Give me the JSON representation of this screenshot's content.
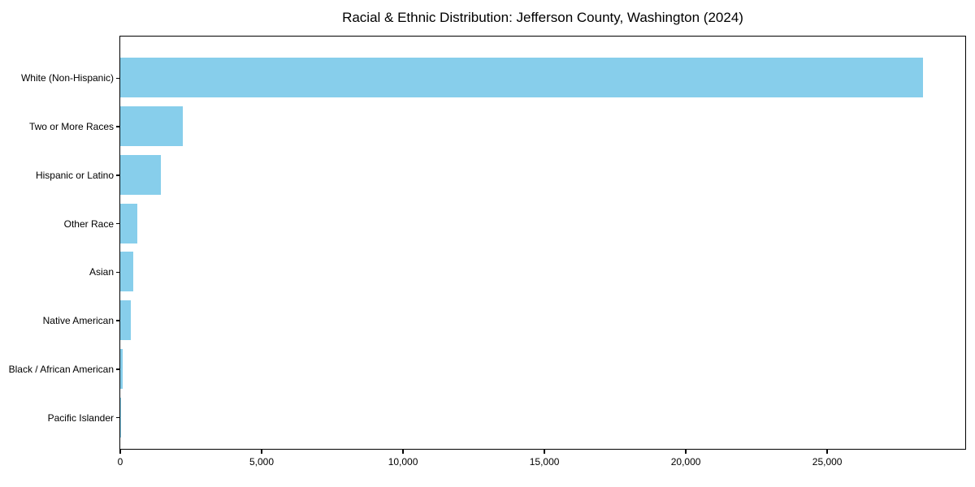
{
  "figure": {
    "background_color": "#ffffff",
    "frame_color": "#000000"
  },
  "chart_data": {
    "type": "bar",
    "orientation": "horizontal",
    "title": "Racial & Ethnic Distribution: Jefferson County, Washington (2024)",
    "categories": [
      "White (Non-Hispanic)",
      "Two or More Races",
      "Hispanic or Latino",
      "Other Race",
      "Asian",
      "Native American",
      "Black / African American",
      "Pacific Islander"
    ],
    "values": [
      28400,
      2200,
      1450,
      600,
      450,
      380,
      100,
      25
    ],
    "xlabel": "",
    "ylabel": "",
    "xlim": [
      0,
      29880
    ],
    "x_ticks": [
      0,
      5000,
      10000,
      15000,
      20000,
      25000
    ],
    "x_tick_labels": [
      "0",
      "5,000",
      "10,000",
      "15,000",
      "20,000",
      "25,000"
    ],
    "grid": false,
    "legend": null,
    "bar_color": "#87CEEB"
  }
}
